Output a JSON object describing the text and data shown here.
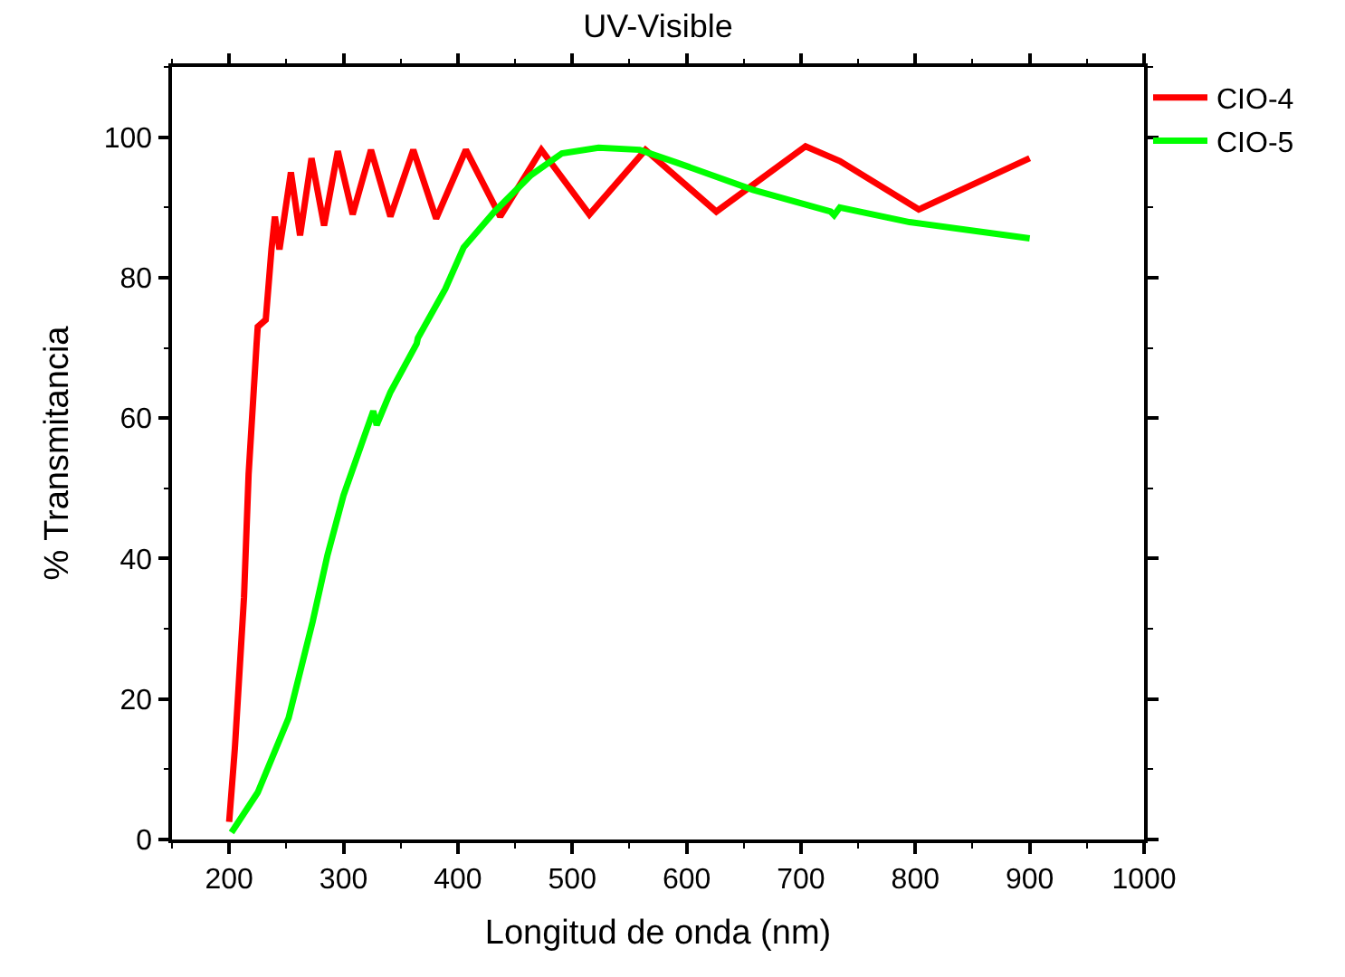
{
  "chart_data": {
    "type": "line",
    "title": "UV-Visible",
    "xlabel": "Longitud de onda (nm)",
    "ylabel": "% Transmitancia",
    "xlim": [
      150,
      1000
    ],
    "xticks": [
      200,
      300,
      400,
      500,
      600,
      700,
      800,
      900,
      1000
    ],
    "ylim": [
      0,
      110
    ],
    "yticks": [
      0,
      20,
      40,
      60,
      80,
      100
    ],
    "grid": false,
    "legend": "top right",
    "marker": "none",
    "line_style": "solid",
    "series": [
      {
        "name": "CIO-4",
        "color": "#ff0000",
        "x": [
          200,
          205,
          213,
          217,
          224,
          225,
          232,
          237,
          240,
          244,
          254,
          262,
          272,
          283,
          295,
          308,
          324,
          341,
          361,
          381,
          407,
          437,
          473,
          515,
          564,
          626,
          704,
          734,
          803,
          900
        ],
        "values": [
          2.5,
          13,
          34.5,
          52,
          70.6,
          73,
          74,
          84,
          88.7,
          84,
          95,
          86,
          97,
          87.4,
          98,
          89,
          98.2,
          88.7,
          98.2,
          88.4,
          98.2,
          88.7,
          98.2,
          89,
          98.2,
          89.4,
          98.7,
          96.6,
          89.7,
          97
        ]
      },
      {
        "name": "CIO-5",
        "color": "#00ff00",
        "x": [
          202,
          225,
          252,
          273,
          286,
          300,
          316,
          326,
          329,
          341,
          364,
          365,
          389,
          405,
          432,
          464,
          491,
          523,
          559,
          591,
          658,
          726,
          729,
          734,
          795,
          900
        ],
        "values": [
          1,
          6.7,
          17.3,
          31,
          40.5,
          49,
          56.4,
          61,
          59,
          63.7,
          70.6,
          71.4,
          78.4,
          84.3,
          89.4,
          94.6,
          97.7,
          98.5,
          98.2,
          96.4,
          92.5,
          89.4,
          88.9,
          90,
          87.9,
          85.6
        ]
      }
    ]
  }
}
